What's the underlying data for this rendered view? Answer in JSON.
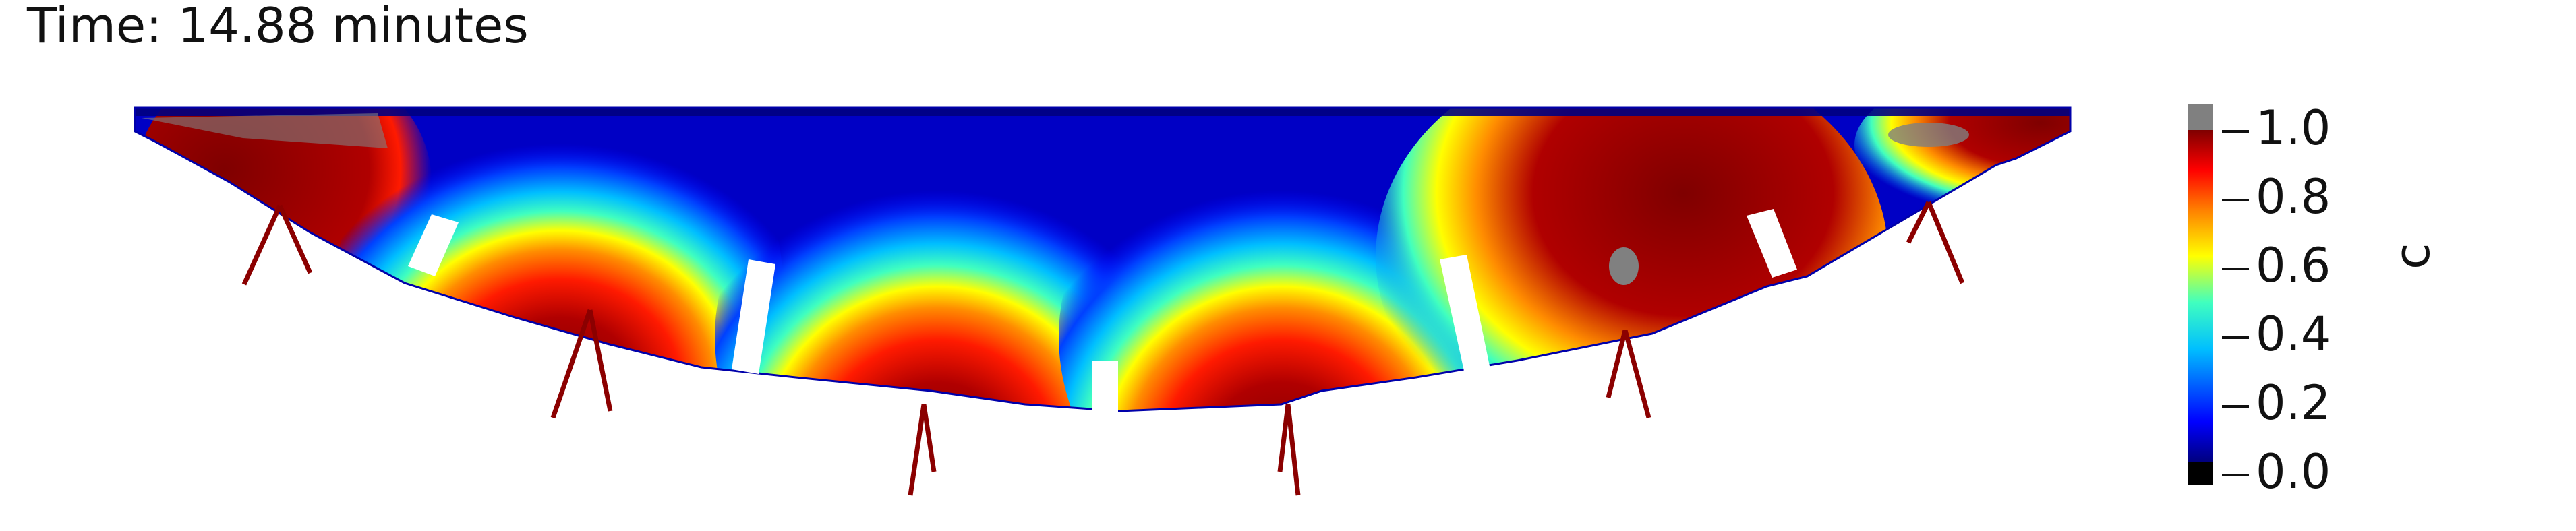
{
  "header": {
    "time_label": "Time: 14.88 minutes"
  },
  "colorbar": {
    "title": "c",
    "ticks": [
      "1.0",
      "0.8",
      "0.6",
      "0.4",
      "0.2",
      "0.0"
    ],
    "colormap": [
      "#000000",
      "#00007f",
      "#0000ff",
      "#00bfff",
      "#40ffbf",
      "#ffff00",
      "#ff7f00",
      "#ff0000",
      "#7f0000",
      "#808080"
    ],
    "below_range_color": "#000000",
    "above_range_color": "#808080"
  },
  "field": {
    "background_color": "#00007f",
    "plume_core_color": "#7f0000",
    "boundary_fluid_color": "#8b0000",
    "overshoot_color": "#808080"
  }
}
